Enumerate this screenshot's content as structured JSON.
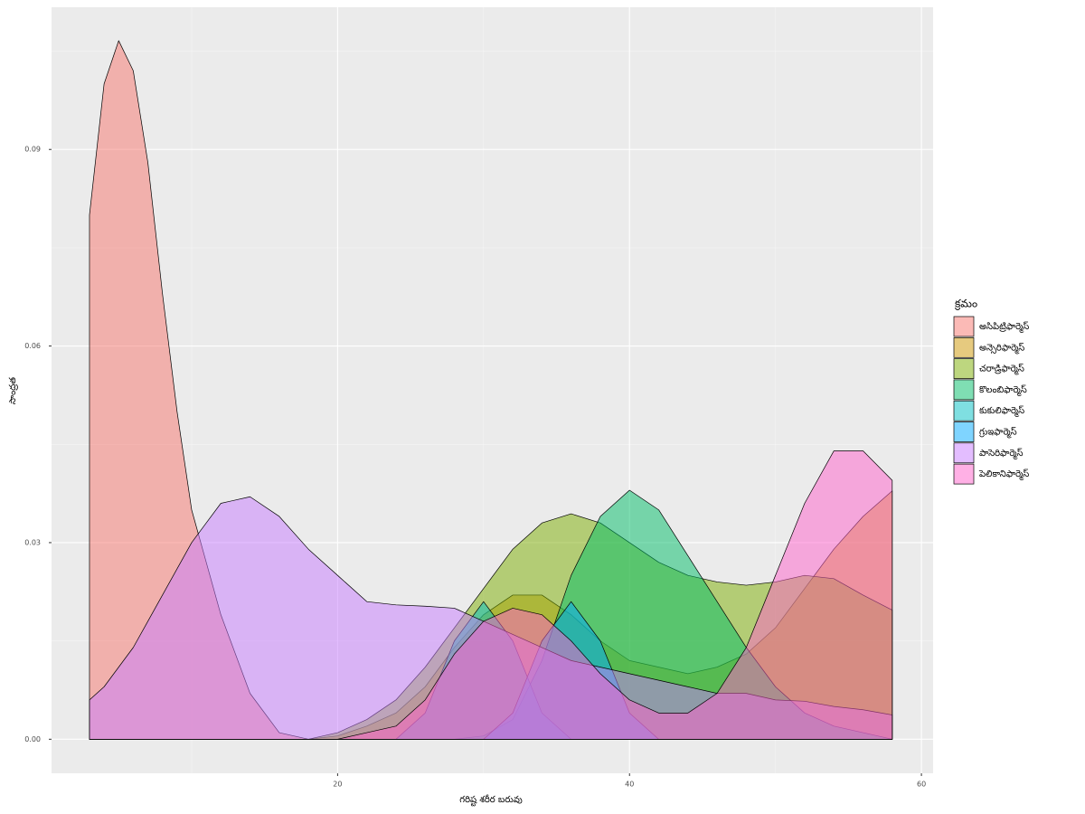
{
  "chart_data": {
    "type": "density",
    "x_label": "గరిష్ట శరీర బరువు",
    "y_label": "సాంద్రత",
    "legend_title": "క్రమం",
    "legend_position": "right",
    "grid": true,
    "xlim": [
      0.4,
      60.8
    ],
    "ylim": [
      -0.0052,
      0.1117
    ],
    "xticks": [
      20,
      40,
      60
    ],
    "yticks": [
      {
        "value": 0,
        "label": "0.00"
      },
      0.03,
      0.06,
      0.09
    ],
    "x_minor_grid": [
      10,
      30,
      50
    ],
    "y_minor_grid": [
      0.015,
      0.045,
      0.075,
      0.105
    ],
    "x": [
      3,
      4,
      5,
      6,
      7,
      8,
      9,
      10,
      11,
      12,
      14,
      16,
      18,
      20,
      22,
      24,
      26,
      28,
      30,
      32,
      34,
      36,
      38,
      40,
      42,
      44,
      46,
      48,
      50,
      52,
      54,
      56,
      58
    ],
    "series": [
      {
        "name": "అసిపిట్రిఫార్మెస్",
        "color": "#F8766D",
        "values": [
          0.08,
          0.1,
          0.1066,
          0.102,
          0.088,
          0.068,
          0.05,
          0.035,
          0.027,
          0.019,
          0.007,
          0.001,
          0,
          0,
          0,
          0,
          0,
          0,
          0,
          0,
          0,
          0,
          0,
          0,
          0,
          0,
          0,
          0,
          0,
          0,
          0,
          0,
          0
        ]
      },
      {
        "name": "అన్సెరిఫార్మెస్",
        "color": "#CD9600",
        "values": [
          0,
          0,
          0,
          0,
          0,
          0,
          0,
          0,
          0,
          0,
          0,
          0,
          0,
          0.0005,
          0.002,
          0.004,
          0.008,
          0.014,
          0.019,
          0.022,
          0.022,
          0.019,
          0.015,
          0.012,
          0.011,
          0.01,
          0.011,
          0.013,
          0.017,
          0.023,
          0.029,
          0.034,
          0.0379
        ]
      },
      {
        "name": "చరాడ్రిఫార్మెస్",
        "color": "#7CAE00",
        "values": [
          0,
          0,
          0,
          0,
          0,
          0,
          0,
          0,
          0,
          0,
          0,
          0,
          0,
          0.001,
          0.003,
          0.006,
          0.011,
          0.017,
          0.023,
          0.029,
          0.033,
          0.0344,
          0.033,
          0.03,
          0.027,
          0.025,
          0.024,
          0.0235,
          0.024,
          0.025,
          0.0245,
          0.022,
          0.0197
        ]
      },
      {
        "name": "కొలంబిఫార్మెస్",
        "color": "#00BE67",
        "values": [
          0,
          0,
          0,
          0,
          0,
          0,
          0,
          0,
          0,
          0,
          0,
          0,
          0,
          0,
          0,
          0,
          0,
          0,
          0.0005,
          0.003,
          0.012,
          0.025,
          0.034,
          0.038,
          0.035,
          0.028,
          0.021,
          0.014,
          0.008,
          0.004,
          0.002,
          0.001,
          0
        ]
      },
      {
        "name": "కుకులిఫార్మెస్",
        "color": "#00BFC4",
        "values": [
          0,
          0,
          0,
          0,
          0,
          0,
          0,
          0,
          0,
          0,
          0,
          0,
          0,
          0,
          0,
          0,
          0.004,
          0.015,
          0.021,
          0.015,
          0.004,
          0,
          0,
          0,
          0,
          0,
          0,
          0,
          0,
          0,
          0,
          0,
          0
        ]
      },
      {
        "name": "గ్రుఇఫార్మెస్",
        "color": "#00A9FF",
        "values": [
          0,
          0,
          0,
          0,
          0,
          0,
          0,
          0,
          0,
          0,
          0,
          0,
          0,
          0,
          0,
          0,
          0,
          0,
          0,
          0.004,
          0.015,
          0.021,
          0.015,
          0.004,
          0,
          0,
          0,
          0,
          0,
          0,
          0,
          0,
          0
        ]
      },
      {
        "name": "పాసెరిఫార్మెస్",
        "color": "#C77CFF",
        "values": [
          0.006,
          0.008,
          0.011,
          0.014,
          0.018,
          0.022,
          0.026,
          0.03,
          0.033,
          0.036,
          0.037,
          0.034,
          0.029,
          0.025,
          0.021,
          0.0205,
          0.0203,
          0.02,
          0.018,
          0.016,
          0.014,
          0.012,
          0.011,
          0.01,
          0.009,
          0.008,
          0.007,
          0.007,
          0.006,
          0.0058,
          0.005,
          0.0045,
          0.0037
        ]
      },
      {
        "name": "పెలికానిఫార్మెస్",
        "color": "#FF61CC",
        "values": [
          0,
          0,
          0,
          0,
          0,
          0,
          0,
          0,
          0,
          0,
          0,
          0,
          0,
          0,
          0.001,
          0.002,
          0.006,
          0.013,
          0.018,
          0.02,
          0.019,
          0.015,
          0.01,
          0.006,
          0.004,
          0.004,
          0.007,
          0.014,
          0.025,
          0.036,
          0.044,
          0.044,
          0.0395
        ]
      }
    ]
  }
}
